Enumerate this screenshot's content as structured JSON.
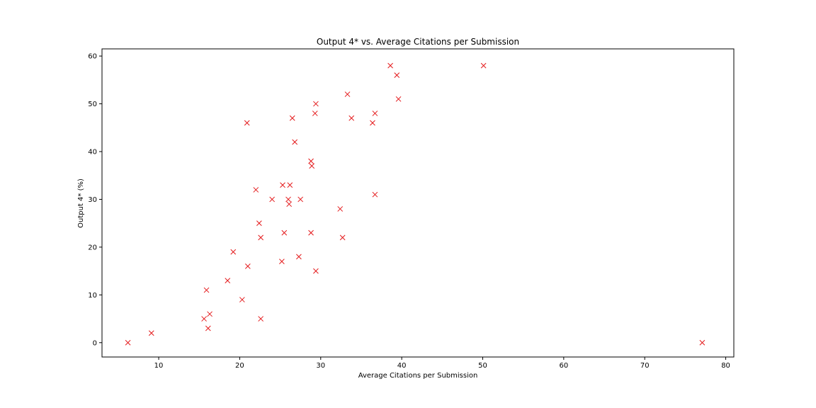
{
  "chart_data": {
    "type": "scatter",
    "title": "Output 4* vs. Average Citations per Submission",
    "xlabel": "Average Citations per Submission",
    "ylabel": "Output 4* (%)",
    "xlim": [
      3,
      81
    ],
    "ylim": [
      -3,
      61.5
    ],
    "xticks": [
      10,
      20,
      30,
      40,
      50,
      60,
      70,
      80
    ],
    "yticks": [
      0,
      10,
      20,
      30,
      40,
      50,
      60
    ],
    "marker": "x",
    "color": "#e41a1c",
    "grid": false,
    "series": [
      {
        "points": [
          [
            6.2,
            0
          ],
          [
            9.1,
            2
          ],
          [
            15.6,
            5
          ],
          [
            15.9,
            11
          ],
          [
            16.1,
            3
          ],
          [
            16.3,
            6
          ],
          [
            18.5,
            13
          ],
          [
            19.2,
            19
          ],
          [
            20.3,
            9
          ],
          [
            20.9,
            46
          ],
          [
            21.0,
            16
          ],
          [
            22.0,
            32
          ],
          [
            22.4,
            25
          ],
          [
            22.6,
            22
          ],
          [
            22.6,
            5
          ],
          [
            24.0,
            30
          ],
          [
            25.2,
            17
          ],
          [
            25.3,
            33
          ],
          [
            25.5,
            23
          ],
          [
            26.0,
            30
          ],
          [
            26.1,
            29
          ],
          [
            26.2,
            33
          ],
          [
            26.5,
            47
          ],
          [
            26.8,
            42
          ],
          [
            27.3,
            18
          ],
          [
            27.5,
            30
          ],
          [
            28.8,
            23
          ],
          [
            28.8,
            38
          ],
          [
            28.9,
            37
          ],
          [
            29.3,
            48
          ],
          [
            29.4,
            50
          ],
          [
            29.4,
            15
          ],
          [
            32.4,
            28
          ],
          [
            32.7,
            22
          ],
          [
            33.3,
            52
          ],
          [
            33.8,
            47
          ],
          [
            36.4,
            46
          ],
          [
            36.7,
            48
          ],
          [
            36.7,
            31
          ],
          [
            38.6,
            58
          ],
          [
            39.4,
            56
          ],
          [
            39.6,
            51
          ],
          [
            50.1,
            58
          ],
          [
            77.1,
            0
          ]
        ]
      }
    ]
  }
}
